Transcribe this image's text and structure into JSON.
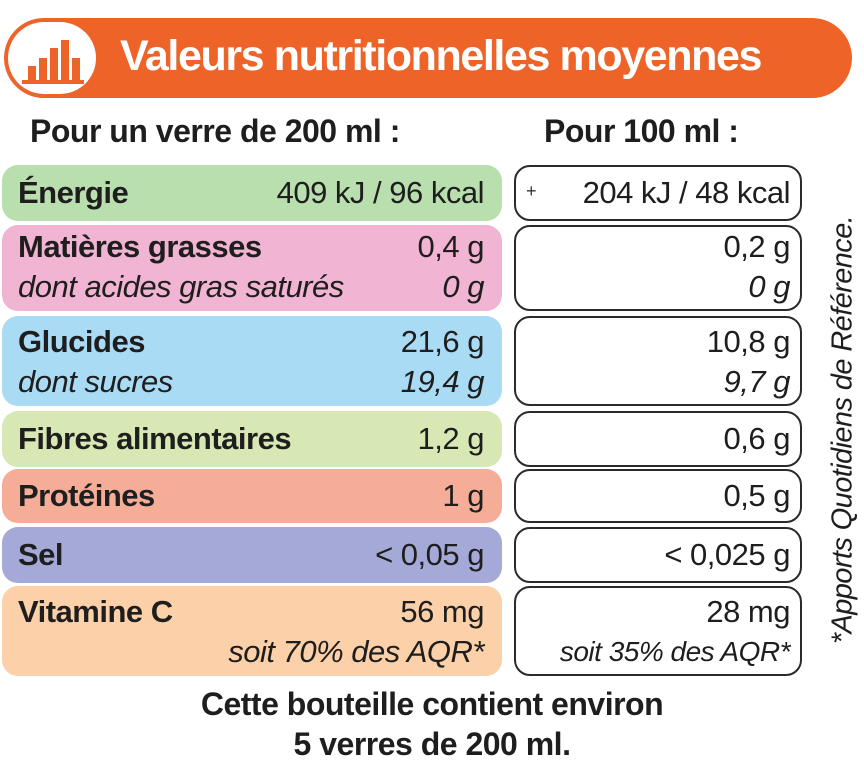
{
  "header": {
    "title": "Valeurs nutritionnelles moyennes",
    "icon": "bar-chart-icon",
    "accent_color": "#ee6328"
  },
  "columns": {
    "per_glass": "Pour un verre de 200 ml :",
    "per_100ml": "Pour 100 ml :"
  },
  "rows": [
    {
      "id": "energie",
      "label": "Énergie",
      "per_glass": "409 kJ / 96 kcal",
      "per_100ml": "204 kJ / 48 kcal",
      "color": "#b9dfae"
    },
    {
      "id": "matieres-grasses",
      "label": "Matières grasses",
      "per_glass": "0,4 g",
      "per_100ml": "0,2 g",
      "sub_label": "dont acides gras saturés",
      "sub_per_glass": "0 g",
      "sub_per_100ml": "0 g",
      "color": "#f1b4d2"
    },
    {
      "id": "glucides",
      "label": "Glucides",
      "per_glass": "21,6 g",
      "per_100ml": "10,8 g",
      "sub_label": "dont sucres",
      "sub_per_glass": "19,4 g",
      "sub_per_100ml": "9,7 g",
      "color": "#a9dbf5"
    },
    {
      "id": "fibres",
      "label": "Fibres alimentaires",
      "per_glass": "1,2 g",
      "per_100ml": "0,6 g",
      "color": "#d8e8b4"
    },
    {
      "id": "proteines",
      "label": "Protéines",
      "per_glass": "1 g",
      "per_100ml": "0,5 g",
      "color": "#f5ad98"
    },
    {
      "id": "sel",
      "label": "Sel",
      "per_glass": "< 0,05 g",
      "per_100ml": "< 0,025 g",
      "color": "#a4a9d8"
    },
    {
      "id": "vitamine-c",
      "label": "Vitamine C",
      "per_glass": "56 mg",
      "per_100ml": "28 mg",
      "sub_per_glass": "soit 70% des AQR*",
      "sub_per_100ml": "soit 35% des AQR*",
      "color": "#fcd0a8"
    }
  ],
  "side_note": "*Apports Quotidiens de Référence.",
  "footer": {
    "line1": "Cette bouteille contient environ",
    "line2": "5 verres de 200 ml."
  }
}
